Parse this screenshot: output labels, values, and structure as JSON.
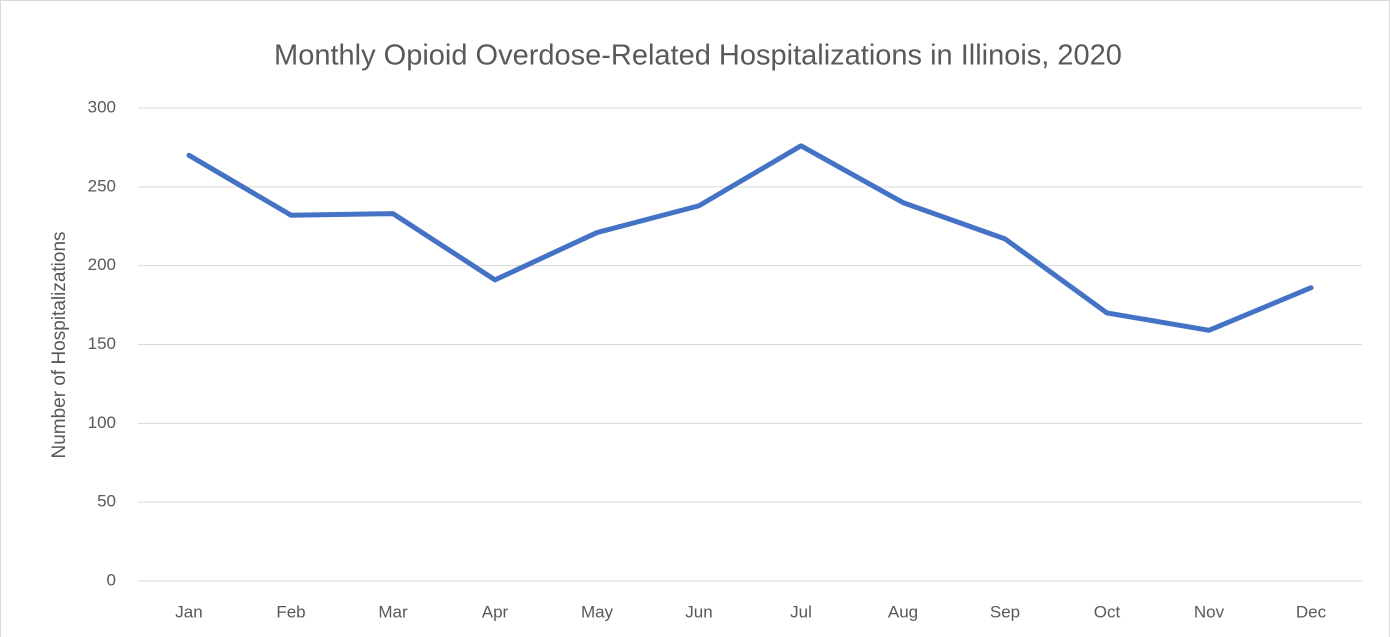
{
  "chart_data": {
    "type": "line",
    "title": "Monthly Opioid Overdose-Related Hospitalizations in Illinois, 2020",
    "y_label": "Number of Hospitalizations",
    "categories": [
      "Jan",
      "Feb",
      "Mar",
      "Apr",
      "May",
      "Jun",
      "Jul",
      "Aug",
      "Sep",
      "Oct",
      "Nov",
      "Dec"
    ],
    "values": [
      270,
      232,
      233,
      191,
      221,
      238,
      276,
      240,
      217,
      170,
      159,
      186
    ],
    "color": "#4472c4",
    "ylim": [
      0,
      300
    ],
    "yticks": [
      0,
      50,
      100,
      150,
      200,
      250,
      300
    ],
    "grid": true
  }
}
